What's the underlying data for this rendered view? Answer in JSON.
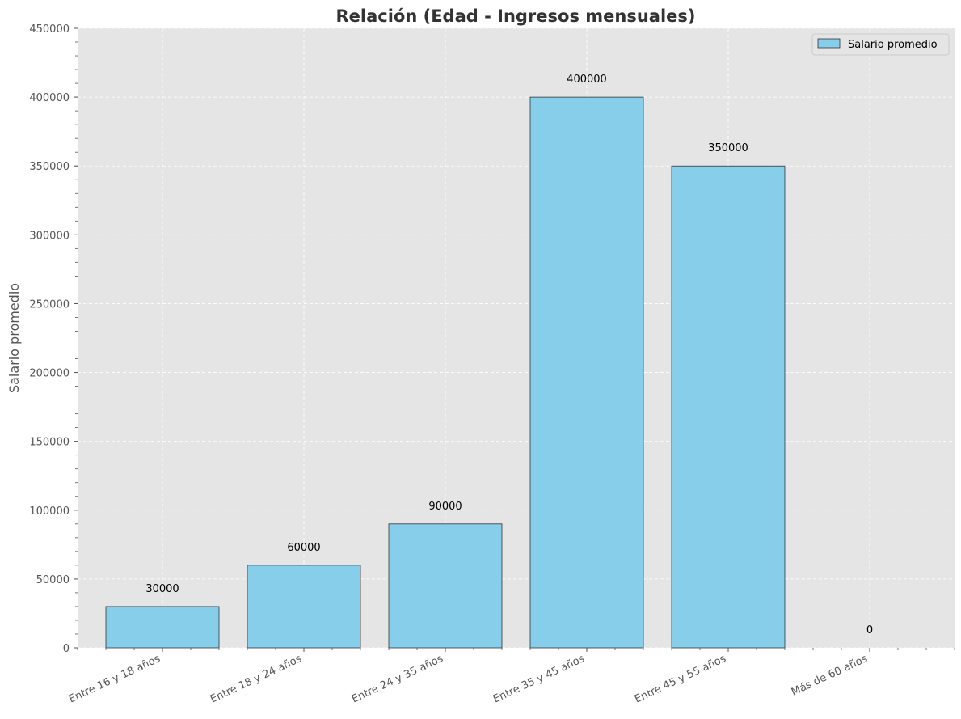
{
  "chart_data": {
    "type": "bar",
    "title": "Relación (Edad - Ingresos mensuales)",
    "xlabel": "",
    "ylabel": "Salario promedio",
    "categories": [
      "Entre 16 y 18 años",
      "Entre 18 y 24 años",
      "Entre 24 y 35 años",
      "Entre 35 y 45 años",
      "Entre 45 y 55 años",
      "Más de 60 años"
    ],
    "series": [
      {
        "name": "Salario promedio",
        "values": [
          30000,
          60000,
          90000,
          400000,
          350000,
          0
        ],
        "color": "#87CEEB"
      }
    ],
    "data_labels": [
      "30000",
      "60000",
      "90000",
      "400000",
      "350000",
      "0"
    ],
    "ylim": [
      0,
      450000
    ],
    "yticks": [
      0,
      50000,
      100000,
      150000,
      200000,
      250000,
      300000,
      350000,
      400000,
      450000
    ],
    "ytick_labels": [
      "0",
      "50000",
      "100000",
      "150000",
      "200000",
      "250000",
      "300000",
      "350000",
      "400000",
      "450000"
    ],
    "grid": true,
    "legend_position": "top-right",
    "background_color": "#E5E5E5",
    "edge_color": "#333333"
  }
}
